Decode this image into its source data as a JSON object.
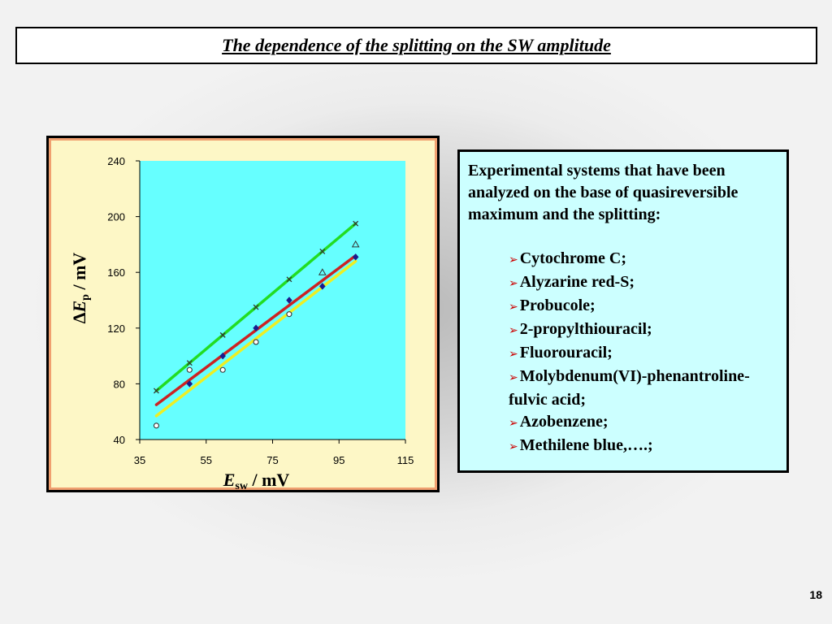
{
  "title": "The dependence of the splitting on the SW amplitude",
  "page_number": "18",
  "info": {
    "intro": "Experimental systems that have been analyzed on the base of quasireversible maximum and the splitting:",
    "systems": [
      "Cytochrome C;",
      "Alyzarine red-S;",
      "Probucole;",
      "2-propylthiouracil;",
      "Fluorouracil;",
      "Molybdenum(VI)-phenantroline-fulvic acid;",
      "Azobenzene;",
      "Methilene blue,….;"
    ],
    "bullet_color": "#cc0000"
  },
  "chart_data": {
    "type": "scatter",
    "xlabel_main": "E",
    "xlabel_sub": "sw",
    "xlabel_unit": " / mV",
    "ylabel_prefix": "Δ",
    "ylabel_main": "E",
    "ylabel_sub": "p",
    "ylabel_unit": " / mV",
    "xlim": [
      35,
      115
    ],
    "ylim": [
      40,
      240
    ],
    "xticks": [
      35,
      55,
      75,
      95,
      115
    ],
    "yticks": [
      40,
      80,
      120,
      160,
      200,
      240
    ],
    "plot_background": "#66ffff",
    "series": [
      {
        "marker": "cross",
        "color": "#333333",
        "x": [
          40,
          50,
          60,
          70,
          80,
          90,
          100
        ],
        "y": [
          75,
          95,
          115,
          135,
          155,
          175,
          195
        ]
      },
      {
        "marker": "triangle",
        "color": "#333333",
        "x": [
          90,
          100
        ],
        "y": [
          160,
          180
        ]
      },
      {
        "marker": "diamond",
        "color": "#1a1a8c",
        "x": [
          50,
          60,
          70,
          80,
          90,
          100
        ],
        "y": [
          80,
          100,
          120,
          140,
          150,
          171
        ]
      },
      {
        "marker": "circle",
        "color": "#333333",
        "x": [
          40,
          50,
          60,
          70,
          80
        ],
        "y": [
          50,
          90,
          90,
          110,
          130
        ]
      }
    ],
    "lines": [
      {
        "color": "#22dd22",
        "x": [
          40,
          100
        ],
        "y": [
          75,
          195
        ]
      },
      {
        "color": "#cc2222",
        "x": [
          40,
          100
        ],
        "y": [
          65,
          172
        ]
      },
      {
        "color": "#eeee22",
        "x": [
          40,
          100
        ],
        "y": [
          57,
          168
        ]
      }
    ]
  }
}
